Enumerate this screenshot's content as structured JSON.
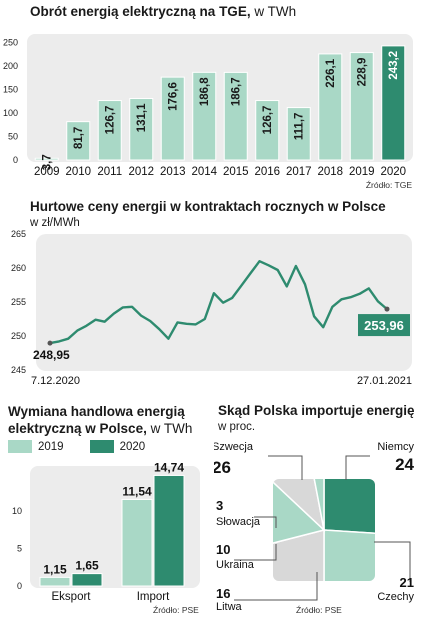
{
  "colors": {
    "light": "#a9d8c6",
    "dark": "#2e8b6f",
    "panel": "#ececec",
    "line": "#2e8b6f",
    "pie_grey": "#d8d8d8"
  },
  "chart1": {
    "title": "Obrót energią elektryczną na TGE,",
    "unit": "w TWh",
    "source": "Źródło: TGE",
    "chart_data": {
      "type": "bar",
      "categories": [
        "2009",
        "2010",
        "2011",
        "2012",
        "2013",
        "2014",
        "2015",
        "2016",
        "2017",
        "2018",
        "2019",
        "2020"
      ],
      "values": [
        3.7,
        81.7,
        126.7,
        131.1,
        176.6,
        186.8,
        186.7,
        126.7,
        111.7,
        226.1,
        228.9,
        243.2
      ],
      "value_labels": [
        "3,7",
        "81,7",
        "126,7",
        "131,1",
        "176,6",
        "186,8",
        "186,7",
        "126,7",
        "111,7",
        "226,1",
        "228,9",
        "243,2"
      ],
      "yticks": [
        0,
        50,
        100,
        150,
        200,
        250
      ],
      "ylim": [
        0,
        260
      ],
      "highlight_index": 11
    }
  },
  "chart2": {
    "title": "Hurtowe ceny energii w kontraktach rocznych w Polsce",
    "unit": "w zł/MWh",
    "chart_data": {
      "type": "line",
      "x_start_label": "7.12.2020",
      "x_end_label": "27.01.2021",
      "yticks": [
        245,
        250,
        255,
        260,
        265
      ],
      "ylim": [
        245,
        265
      ],
      "values": [
        248.95,
        249.2,
        249.6,
        250.8,
        251.5,
        252.4,
        252.1,
        253.3,
        254.2,
        254.3,
        253.0,
        252.2,
        251.0,
        249.6,
        252.0,
        251.8,
        251.7,
        252.5,
        256.3,
        254.9,
        255.6,
        257.4,
        259.2,
        261.0,
        260.4,
        259.7,
        257.3,
        260.3,
        257.6,
        252.9,
        251.3,
        254.3,
        255.4,
        255.7,
        256.2,
        257.0,
        255.1,
        253.96
      ],
      "start_label": "248,95",
      "end_label": "253,96"
    }
  },
  "chart3": {
    "title_line1": "Wymiana handlowa energią",
    "title_line2": "elektryczną w Polsce,",
    "unit": "w TWh",
    "legend": [
      "2019",
      "2020"
    ],
    "source": "Źródło: PSE",
    "chart_data": {
      "type": "bar",
      "categories": [
        "Eksport",
        "Import"
      ],
      "series": [
        {
          "name": "2019",
          "values": [
            1.15,
            11.54
          ],
          "labels": [
            "1,15",
            "11,54"
          ]
        },
        {
          "name": "2020",
          "values": [
            1.65,
            14.74
          ],
          "labels": [
            "1,65",
            "14,74"
          ]
        }
      ],
      "yticks": [
        0,
        5,
        10
      ],
      "ylim": [
        0,
        16
      ]
    }
  },
  "chart4": {
    "title": "Skąd Polska importuje energię",
    "unit": "w proc.",
    "source": "Źródło: PSE",
    "chart_data": {
      "type": "pie",
      "slices": [
        {
          "label": "Szwecja",
          "value": 26
        },
        {
          "label": "Niemcy",
          "value": 24
        },
        {
          "label": "Czechy",
          "value": 21
        },
        {
          "label": "Litwa",
          "value": 16
        },
        {
          "label": "Ukraina",
          "value": 10
        },
        {
          "label": "Słowacja",
          "value": 3
        }
      ],
      "value_labels": [
        "26",
        "24",
        "21",
        "16",
        "10",
        "3"
      ]
    }
  }
}
